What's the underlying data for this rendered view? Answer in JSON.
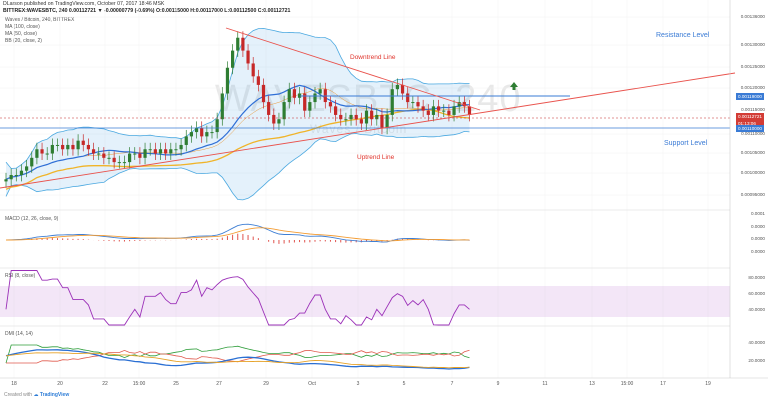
{
  "header": {
    "line1": "DLarson published on TradingView.com, October 07, 2017 18:46 MSK",
    "line2": "BITTREX:WAVESBTC, 240 0.00112721 ▼ -0.00000779 (-0.69%) O:0.00115000 H:0.00117000 L:0.00112500 C:0.00112721",
    "symbol_title": "Waves / Bitcoin, 240, BITTREX",
    "ma100": "MA (100, close)",
    "ma50": "MA (50, close)",
    "bb": "BB (20, close, 2)"
  },
  "watermark": {
    "ticker": "WAVESBTC, 240",
    "name": "Waves / Bitcoin"
  },
  "annotations": {
    "resistance": "Resistance Level",
    "support": "Support Level",
    "downtrend": "Downtrend Line",
    "uptrend": "Uptrend Line"
  },
  "price_axis": {
    "ticks": [
      "0.00136000",
      "0.00130000",
      "0.00125000",
      "0.00120000",
      "0.00115000",
      "0.00110000",
      "0.00105000",
      "0.00100000",
      "0.00095000"
    ],
    "resistance_tag": "0.00119000",
    "last_tag_1": "0.00112721",
    "last_tag_2": "01:13:06",
    "support_tag": "0.00110000"
  },
  "macd": {
    "label": "MACD (12, 26, close, 9)",
    "ticks": [
      "0.0001",
      "0.0000",
      "0.0000",
      "0.0000"
    ]
  },
  "rsi": {
    "label": "RSI (8, close)",
    "ticks": [
      "80.0000",
      "60.0000",
      "40.0000"
    ]
  },
  "dmi": {
    "label": "DMI (14, 14)",
    "ticks": [
      "40.0000",
      "20.0000"
    ]
  },
  "x_axis": {
    "ticks": [
      "18",
      "20",
      "22",
      "15:00",
      "25",
      "27",
      "29",
      "Oct",
      "3",
      "5",
      "7",
      "9",
      "11",
      "13",
      "15:00",
      "17",
      "19"
    ]
  },
  "footer": {
    "created": "Created with",
    "brand": "TradingView"
  },
  "colors": {
    "up": "#2e7d32",
    "down": "#c62828",
    "ma100": "#f0b429",
    "ma50": "#2f6fd6",
    "bb": "#4aa8e0",
    "bb_fill": "rgba(90,170,230,0.16)",
    "trend": "#e9534d",
    "level": "#3a7bd5",
    "macd": "#3f7fd4",
    "signal": "#f39c33",
    "hist": "#e0534d",
    "rsi": "#9b30b8",
    "rsi_band": "rgba(200,140,220,0.22)",
    "plus_di": "#2e9d3a",
    "minus_di": "#e05a4d",
    "adx": "#2a6fd3",
    "adxr": "#e6a229"
  },
  "chart_data": {
    "type": "line",
    "title": "Waves / Bitcoin, 240, BITTREX",
    "y_range_price": [
      0.00092,
      0.00137
    ],
    "resistance_level": 0.00119,
    "support_level": 0.0011,
    "last_price": 0.00112721,
    "close_series": [
      0.00098,
      0.00099,
      0.00099,
      0.001,
      0.00101,
      0.00103,
      0.00105,
      0.00104,
      0.00104,
      0.00106,
      0.00106,
      0.00105,
      0.00106,
      0.00105,
      0.00107,
      0.00106,
      0.00105,
      0.00104,
      0.00104,
      0.00103,
      0.00103,
      0.00102,
      0.00102,
      0.00102,
      0.00104,
      0.00104,
      0.00103,
      0.00105,
      0.00105,
      0.00104,
      0.00105,
      0.00104,
      0.00105,
      0.00105,
      0.00106,
      0.00108,
      0.00109,
      0.0011,
      0.00108,
      0.00109,
      0.00109,
      0.00112,
      0.00118,
      0.00124,
      0.00128,
      0.00131,
      0.00128,
      0.00125,
      0.00122,
      0.0012,
      0.00116,
      0.00113,
      0.00111,
      0.00112,
      0.00116,
      0.00119,
      0.00117,
      0.00118,
      0.00114,
      0.00116,
      0.00118,
      0.00119,
      0.00116,
      0.00115,
      0.00113,
      0.00112,
      0.00112,
      0.00113,
      0.00112,
      0.00111,
      0.00114,
      0.00112,
      0.00113,
      0.0011,
      0.00113,
      0.00119,
      0.0012,
      0.00118,
      0.00116,
      0.00116,
      0.00115,
      0.00114,
      0.00113,
      0.00115,
      0.00114,
      0.00114,
      0.00113,
      0.00115,
      0.00116,
      0.00115,
      0.00113
    ]
  }
}
